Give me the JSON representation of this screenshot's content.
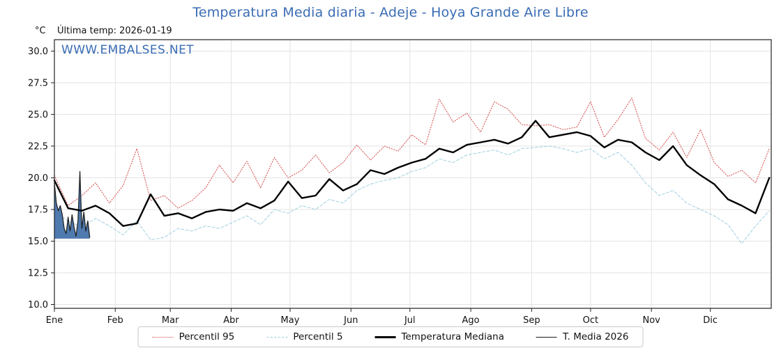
{
  "title": "Temperatura Media diaria - Adeje - Hoya Grande Aire Libre",
  "unit_label": "°C",
  "last_temp_label": "Última temp: 2026-01-19",
  "watermark": "WWW.EMBALSES.NET",
  "colors": {
    "title": "#3a6cb4",
    "watermark": "#3a6cb4",
    "axis": "#222222"
  },
  "chart_data": {
    "type": "line",
    "title": "Temperatura Media diaria - Adeje - Hoya Grande Aire Libre",
    "ylabel": "°C",
    "ylim": [
      9.7,
      30.9
    ],
    "xlim": [
      1,
      366
    ],
    "yticks": [
      10.0,
      12.5,
      15.0,
      17.5,
      20.0,
      22.5,
      25.0,
      27.5,
      30.0
    ],
    "x_tick_labels": [
      "Ene",
      "Feb",
      "Mar",
      "Abr",
      "May",
      "Jun",
      "Jul",
      "Ago",
      "Sep",
      "Oct",
      "Nov",
      "Dic"
    ],
    "month_start_days": [
      1,
      32,
      60,
      91,
      121,
      152,
      182,
      213,
      244,
      274,
      305,
      335
    ],
    "grid": true,
    "grid_color": "#e3e3e3",
    "legend_position": "bottom",
    "series": [
      {
        "name": "Percentil 95",
        "style": "dotted",
        "color": "#d24a4a",
        "width": 1,
        "z": 1,
        "x_days": [
          1,
          8,
          15,
          22,
          29,
          36,
          43,
          50,
          57,
          64,
          71,
          78,
          85,
          92,
          99,
          106,
          113,
          120,
          127,
          134,
          141,
          148,
          155,
          162,
          169,
          176,
          183,
          190,
          197,
          204,
          211,
          218,
          225,
          232,
          239,
          246,
          253,
          260,
          267,
          274,
          281,
          288,
          295,
          302,
          309,
          316,
          323,
          330,
          337,
          344,
          351,
          358,
          365
        ],
        "values": [
          20.2,
          17.8,
          18.6,
          19.6,
          18.0,
          19.4,
          22.3,
          18.2,
          18.6,
          17.6,
          18.2,
          19.2,
          21.0,
          19.6,
          21.3,
          19.2,
          21.6,
          20.0,
          20.6,
          21.8,
          20.4,
          21.2,
          22.6,
          21.4,
          22.5,
          22.1,
          23.4,
          22.6,
          26.2,
          24.4,
          25.1,
          23.6,
          26.0,
          25.4,
          24.2,
          24.1,
          24.2,
          23.8,
          24.0,
          26.0,
          23.2,
          24.6,
          26.3,
          23.1,
          22.2,
          23.6,
          21.6,
          23.8,
          21.2,
          20.1,
          20.6,
          19.6,
          22.3
        ]
      },
      {
        "name": "Percentil 5",
        "style": "dashed",
        "color": "#9fcfe0",
        "width": 1,
        "z": 2,
        "x_days": [
          1,
          8,
          15,
          22,
          29,
          36,
          43,
          50,
          57,
          64,
          71,
          78,
          85,
          92,
          99,
          106,
          113,
          120,
          127,
          134,
          141,
          148,
          155,
          162,
          169,
          176,
          183,
          190,
          197,
          204,
          211,
          218,
          225,
          232,
          239,
          246,
          253,
          260,
          267,
          274,
          281,
          288,
          295,
          302,
          309,
          316,
          323,
          330,
          337,
          344,
          351,
          358,
          365
        ],
        "values": [
          17.3,
          16.6,
          16.1,
          16.8,
          16.2,
          15.5,
          16.6,
          15.1,
          15.3,
          16.0,
          15.8,
          16.2,
          16.0,
          16.5,
          17.0,
          16.3,
          17.5,
          17.2,
          17.8,
          17.5,
          18.3,
          18.0,
          19.0,
          19.5,
          19.8,
          20.0,
          20.5,
          20.8,
          21.5,
          21.2,
          21.8,
          22.0,
          22.2,
          21.8,
          22.3,
          22.4,
          22.5,
          22.3,
          22.0,
          22.3,
          21.5,
          22.0,
          21.0,
          19.6,
          18.6,
          19.0,
          18.0,
          17.5,
          17.0,
          16.3,
          14.8,
          16.2,
          17.4
        ]
      },
      {
        "name": "Temperatura Mediana",
        "style": "solid",
        "color": "#000000",
        "width": 2.4,
        "z": 4,
        "x_days": [
          1,
          8,
          15,
          22,
          29,
          36,
          43,
          50,
          57,
          64,
          71,
          78,
          85,
          92,
          99,
          106,
          113,
          120,
          127,
          134,
          141,
          148,
          155,
          162,
          169,
          176,
          183,
          190,
          197,
          204,
          211,
          218,
          225,
          232,
          239,
          246,
          253,
          260,
          267,
          274,
          281,
          288,
          295,
          302,
          309,
          316,
          323,
          330,
          337,
          344,
          351,
          358,
          365
        ],
        "values": [
          19.8,
          17.6,
          17.4,
          17.8,
          17.2,
          16.2,
          16.4,
          18.7,
          17.0,
          17.2,
          16.8,
          17.3,
          17.5,
          17.4,
          18.0,
          17.6,
          18.2,
          19.7,
          18.4,
          18.6,
          19.9,
          19.0,
          19.5,
          20.6,
          20.3,
          20.8,
          21.2,
          21.5,
          22.3,
          22.0,
          22.6,
          22.8,
          23.0,
          22.7,
          23.2,
          24.5,
          23.2,
          23.4,
          23.6,
          23.3,
          22.4,
          23.0,
          22.8,
          22.0,
          21.4,
          22.5,
          21.0,
          20.2,
          19.5,
          18.3,
          17.8,
          17.2,
          20.0
        ]
      },
      {
        "name": "T. Media 2026",
        "style": "solid",
        "color": "#1a1a1a",
        "width": 1.2,
        "z": 3,
        "fill": "#3f6fa8",
        "fill_baseline": 15.2,
        "x_days": [
          1,
          2,
          3,
          4,
          5,
          6,
          7,
          8,
          9,
          10,
          11,
          12,
          13,
          14,
          15,
          16,
          17,
          18,
          19
        ],
        "values": [
          19.6,
          18.0,
          17.4,
          17.8,
          17.1,
          16.0,
          15.6,
          16.9,
          15.8,
          17.1,
          16.1,
          15.4,
          16.6,
          20.5,
          16.0,
          17.3,
          15.8,
          16.6,
          15.3
        ]
      }
    ]
  }
}
